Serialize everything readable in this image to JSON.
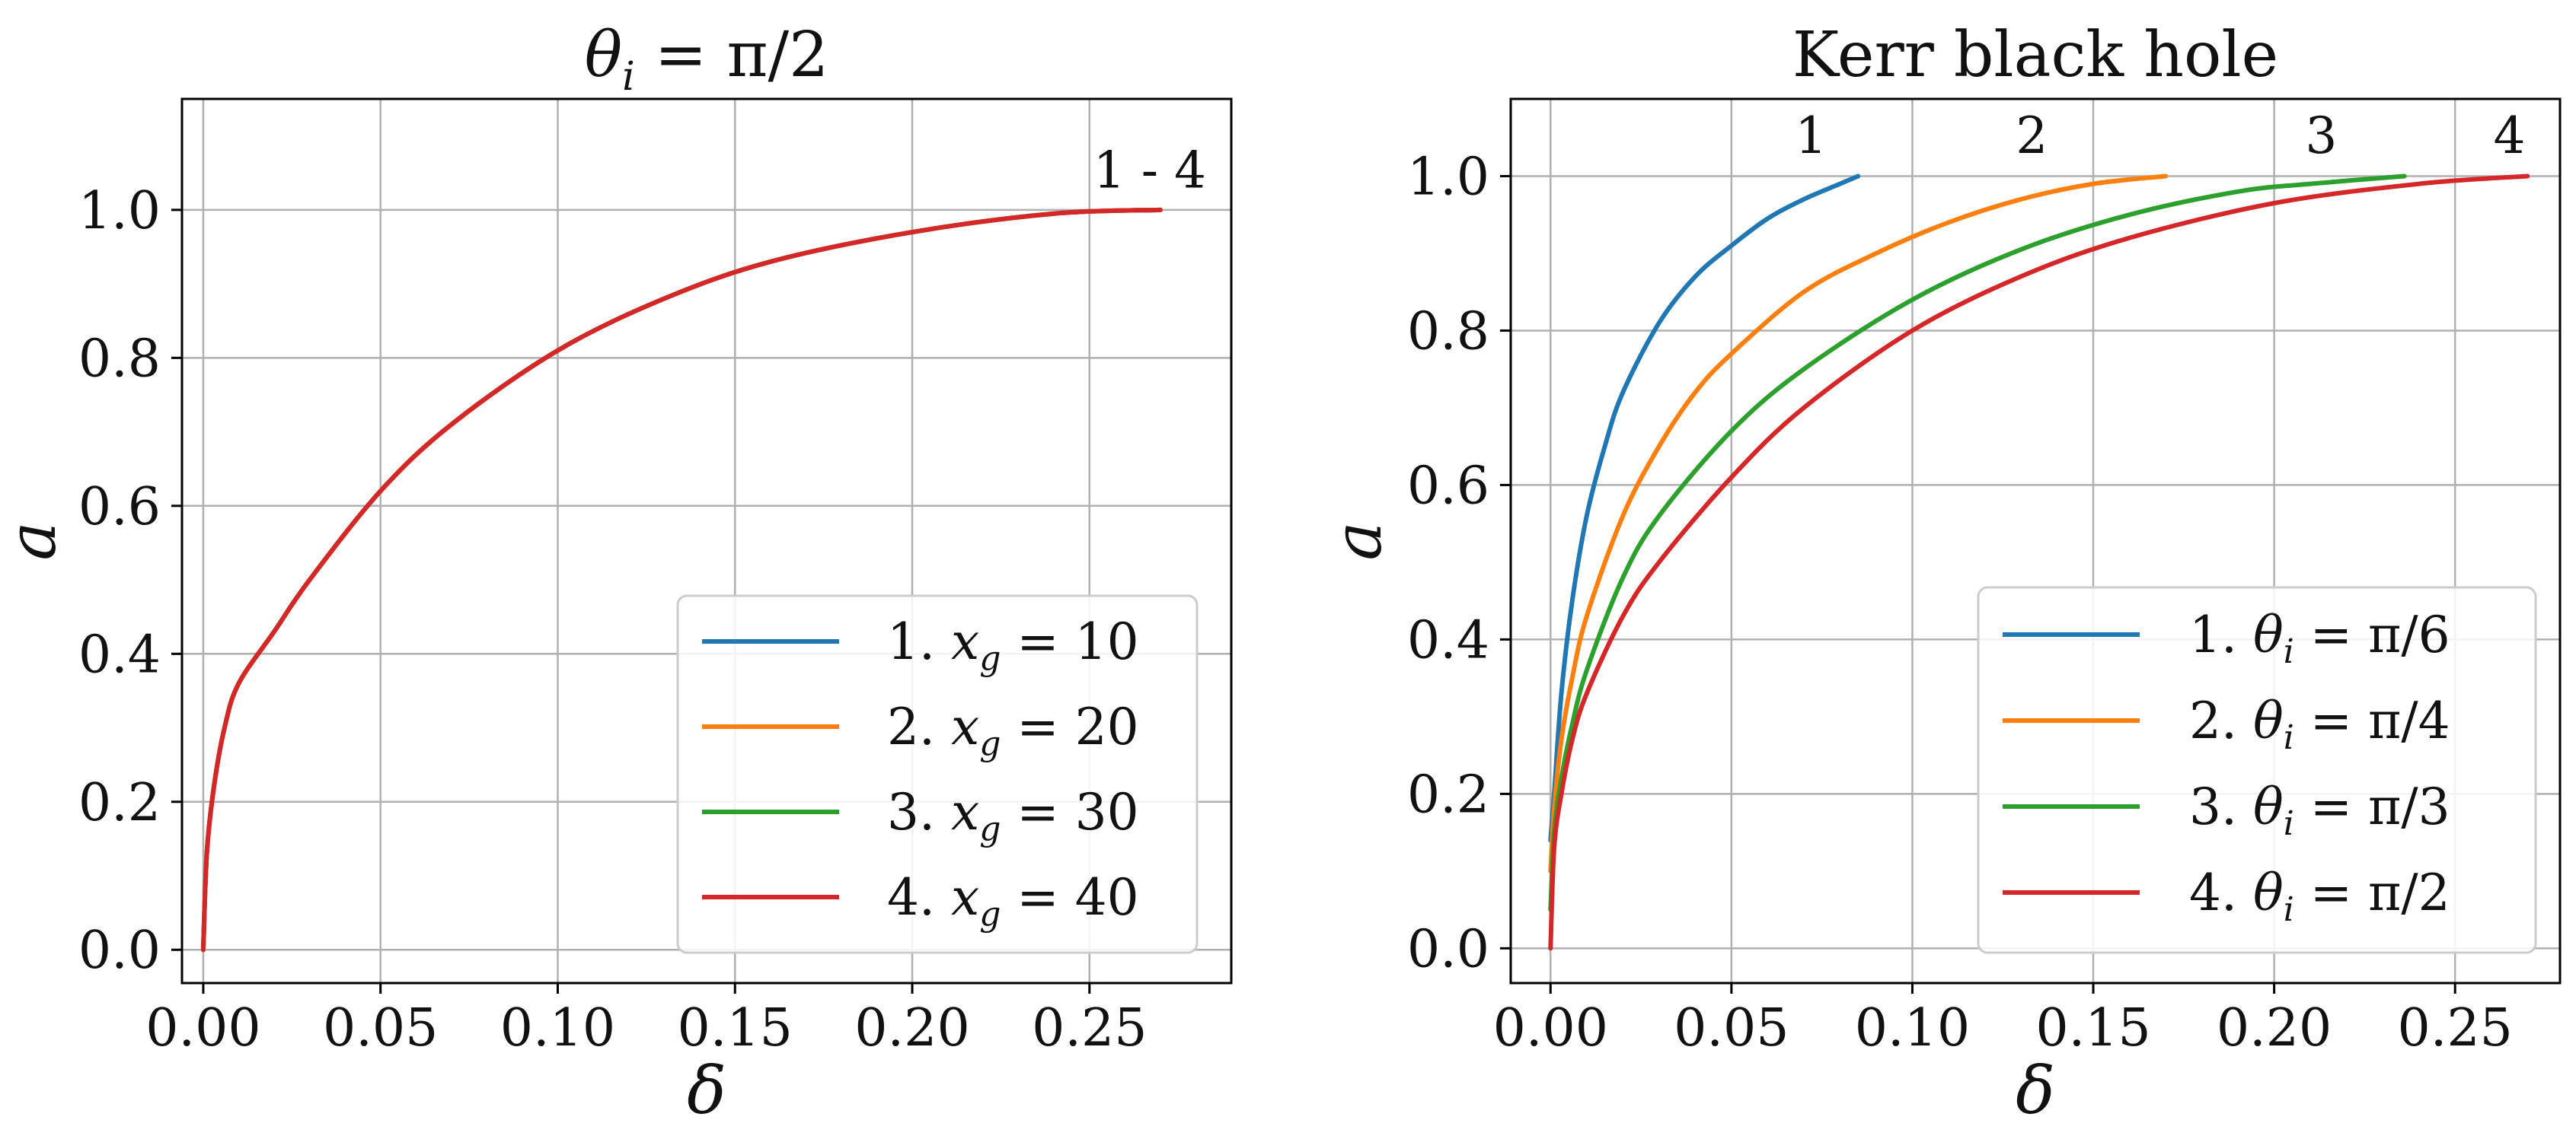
{
  "colors": {
    "series1": "#1f77b4",
    "series2": "#ff7f0e",
    "series3": "#2ca02c",
    "series4": "#d62728",
    "grid": "#b0b0b0",
    "frame": "#000000"
  },
  "chart_data": [
    {
      "type": "line",
      "title": "θi = π/2",
      "xlabel": "δ",
      "ylabel": "a",
      "xlim": [
        -0.006,
        0.29
      ],
      "ylim": [
        -0.045,
        1.15
      ],
      "grid": true,
      "xticks": [
        0.0,
        0.05,
        0.1,
        0.15,
        0.2,
        0.25
      ],
      "xtick_labels": [
        "0.00",
        "0.05",
        "0.10",
        "0.15",
        "0.20",
        "0.25"
      ],
      "yticks": [
        0.0,
        0.2,
        0.4,
        0.6,
        0.8,
        1.0
      ],
      "ytick_labels": [
        "0.0",
        "0.2",
        "0.4",
        "0.6",
        "0.8",
        "1.0"
      ],
      "legend_position": "lower-right",
      "annotations": [
        {
          "text": "1 - 4",
          "x": 0.267,
          "y": 1.03
        }
      ],
      "series": [
        {
          "name": "1. xg = 10",
          "x": [
            0,
            0.001,
            0.003,
            0.006,
            0.01,
            0.02,
            0.03,
            0.05,
            0.07,
            0.1,
            0.13,
            0.16,
            0.2,
            0.24,
            0.27
          ],
          "y": [
            0,
            0.13,
            0.22,
            0.3,
            0.36,
            0.43,
            0.5,
            0.62,
            0.71,
            0.81,
            0.88,
            0.93,
            0.97,
            0.995,
            1.0
          ]
        },
        {
          "name": "2. xg = 20",
          "x": [
            0,
            0.001,
            0.003,
            0.006,
            0.01,
            0.02,
            0.03,
            0.05,
            0.07,
            0.1,
            0.13,
            0.16,
            0.2,
            0.24,
            0.27
          ],
          "y": [
            0,
            0.13,
            0.22,
            0.3,
            0.36,
            0.43,
            0.5,
            0.62,
            0.71,
            0.81,
            0.88,
            0.93,
            0.97,
            0.995,
            1.0
          ]
        },
        {
          "name": "3. xg = 30",
          "x": [
            0,
            0.001,
            0.003,
            0.006,
            0.01,
            0.02,
            0.03,
            0.05,
            0.07,
            0.1,
            0.13,
            0.16,
            0.2,
            0.24,
            0.27
          ],
          "y": [
            0,
            0.13,
            0.22,
            0.3,
            0.36,
            0.43,
            0.5,
            0.62,
            0.71,
            0.81,
            0.88,
            0.93,
            0.97,
            0.995,
            1.0
          ]
        },
        {
          "name": "4. xg = 40",
          "x": [
            0,
            0.001,
            0.003,
            0.006,
            0.01,
            0.02,
            0.03,
            0.05,
            0.07,
            0.1,
            0.13,
            0.16,
            0.2,
            0.24,
            0.27
          ],
          "y": [
            0,
            0.13,
            0.22,
            0.3,
            0.36,
            0.43,
            0.5,
            0.62,
            0.71,
            0.81,
            0.88,
            0.93,
            0.97,
            0.995,
            1.0
          ]
        }
      ]
    },
    {
      "type": "line",
      "title": "Kerr black hole",
      "xlabel": "δ",
      "ylabel": "a",
      "xlim": [
        -0.011,
        0.279
      ],
      "ylim": [
        -0.045,
        1.1
      ],
      "grid": true,
      "xticks": [
        0.0,
        0.05,
        0.1,
        0.15,
        0.2,
        0.25
      ],
      "xtick_labels": [
        "0.00",
        "0.05",
        "0.10",
        "0.15",
        "0.20",
        "0.25"
      ],
      "yticks": [
        0.0,
        0.2,
        0.4,
        0.6,
        0.8,
        1.0
      ],
      "ytick_labels": [
        "0.0",
        "0.2",
        "0.4",
        "0.6",
        "0.8",
        "1.0"
      ],
      "legend_position": "lower-right",
      "annotations": [
        {
          "text": "1",
          "x": 0.072,
          "y": 1.03
        },
        {
          "text": "2",
          "x": 0.133,
          "y": 1.03
        },
        {
          "text": "3",
          "x": 0.213,
          "y": 1.03
        },
        {
          "text": "4",
          "x": 0.265,
          "y": 1.03
        }
      ],
      "series": [
        {
          "name": "1. θi = π/6",
          "x": [
            0,
            0.001,
            0.003,
            0.006,
            0.01,
            0.015,
            0.02,
            0.03,
            0.04,
            0.05,
            0.06,
            0.07,
            0.08,
            0.085
          ],
          "y": [
            0.14,
            0.2,
            0.33,
            0.45,
            0.56,
            0.65,
            0.72,
            0.81,
            0.87,
            0.91,
            0.945,
            0.97,
            0.99,
            1.0
          ]
        },
        {
          "name": "2. θi = π/4",
          "x": [
            0,
            0.001,
            0.003,
            0.006,
            0.01,
            0.02,
            0.03,
            0.04,
            0.05,
            0.07,
            0.09,
            0.11,
            0.13,
            0.15,
            0.17
          ],
          "y": [
            0.1,
            0.18,
            0.27,
            0.35,
            0.43,
            0.56,
            0.65,
            0.72,
            0.77,
            0.85,
            0.9,
            0.94,
            0.97,
            0.99,
            1.0
          ]
        },
        {
          "name": "3. θi = π/3",
          "x": [
            0,
            0.001,
            0.003,
            0.006,
            0.01,
            0.02,
            0.03,
            0.05,
            0.07,
            0.1,
            0.13,
            0.16,
            0.19,
            0.21,
            0.236
          ],
          "y": [
            0.05,
            0.15,
            0.22,
            0.29,
            0.36,
            0.48,
            0.56,
            0.67,
            0.75,
            0.84,
            0.905,
            0.95,
            0.98,
            0.99,
            1.0
          ]
        },
        {
          "name": "4. θi = π/2",
          "x": [
            0,
            0.001,
            0.003,
            0.006,
            0.01,
            0.02,
            0.03,
            0.05,
            0.07,
            0.1,
            0.13,
            0.16,
            0.2,
            0.24,
            0.27
          ],
          "y": [
            0,
            0.13,
            0.2,
            0.27,
            0.33,
            0.43,
            0.5,
            0.61,
            0.7,
            0.8,
            0.87,
            0.92,
            0.965,
            0.99,
            1.0
          ]
        }
      ]
    }
  ]
}
